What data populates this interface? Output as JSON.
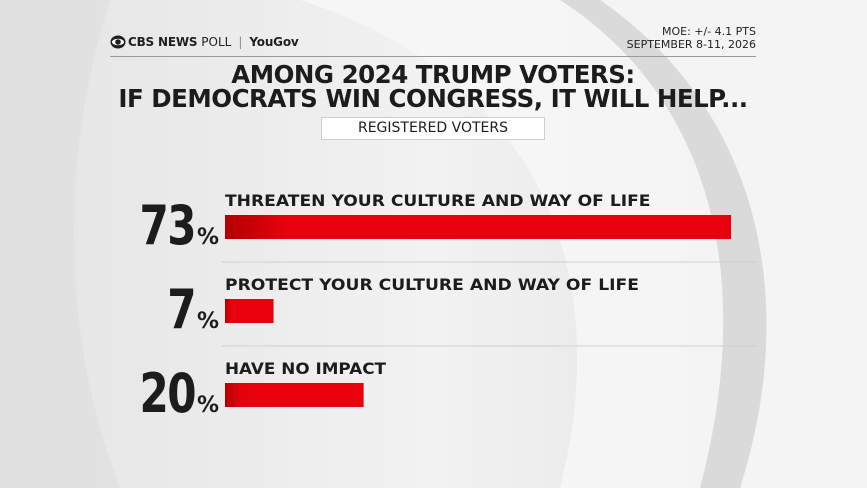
{
  "header": {
    "brand_cbs": "CBS NEWS",
    "brand_poll": "POLL",
    "brand_yougov": "YouGov",
    "moe": "MOE: +/- 4.1 PTS",
    "dates": "SEPTEMBER 8-11, 2026"
  },
  "colors": {
    "bar_red": "#e8000d",
    "bar_dark": "#b30000",
    "text": "#1c1c1c"
  },
  "chart_data": {
    "type": "bar",
    "title": "AMONG 2024 TRUMP VOTERS: IF DEMOCRATS WIN CONGRESS, IT WILL HELP...",
    "title_lines": [
      "AMONG 2024 TRUMP VOTERS:",
      "IF DEMOCRATS WIN CONGRESS, IT WILL HELP..."
    ],
    "subtitle": "REGISTERED VOTERS",
    "orientation": "horizontal",
    "unit": "%",
    "categories": [
      "THREATEN YOUR CULTURE AND WAY OF LIFE",
      "PROTECT YOUR CULTURE AND WAY OF LIFE",
      "HAVE NO IMPACT"
    ],
    "values": [
      73,
      7,
      20
    ],
    "value_labels": [
      "73",
      "7",
      "20"
    ],
    "xlim": [
      0,
      73
    ],
    "grid": false,
    "legend": "none"
  }
}
